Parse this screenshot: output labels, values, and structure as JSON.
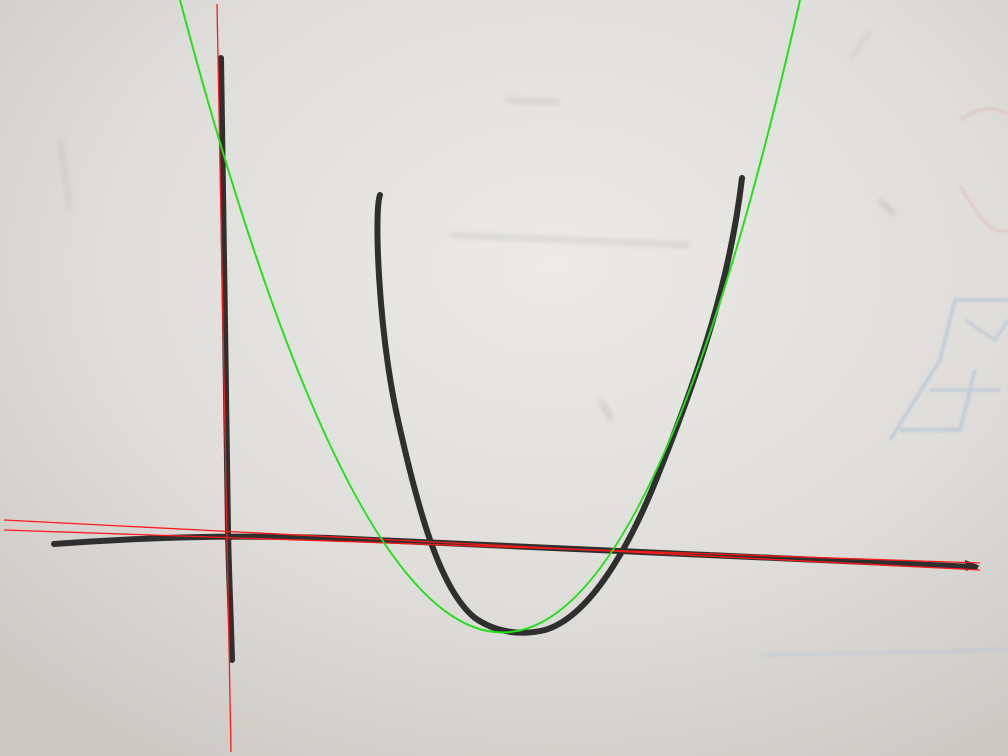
{
  "scene": {
    "description_free": true,
    "marker_color": "#2f2f2f",
    "whiteboard_color": "#dedcd8",
    "fitted_axis_color": "#ff1a1a",
    "fitted_curve_color": "#22e01a",
    "faint_blue_ink": "#9fb6d6",
    "faint_red_ink": "#e0a9a9"
  }
}
